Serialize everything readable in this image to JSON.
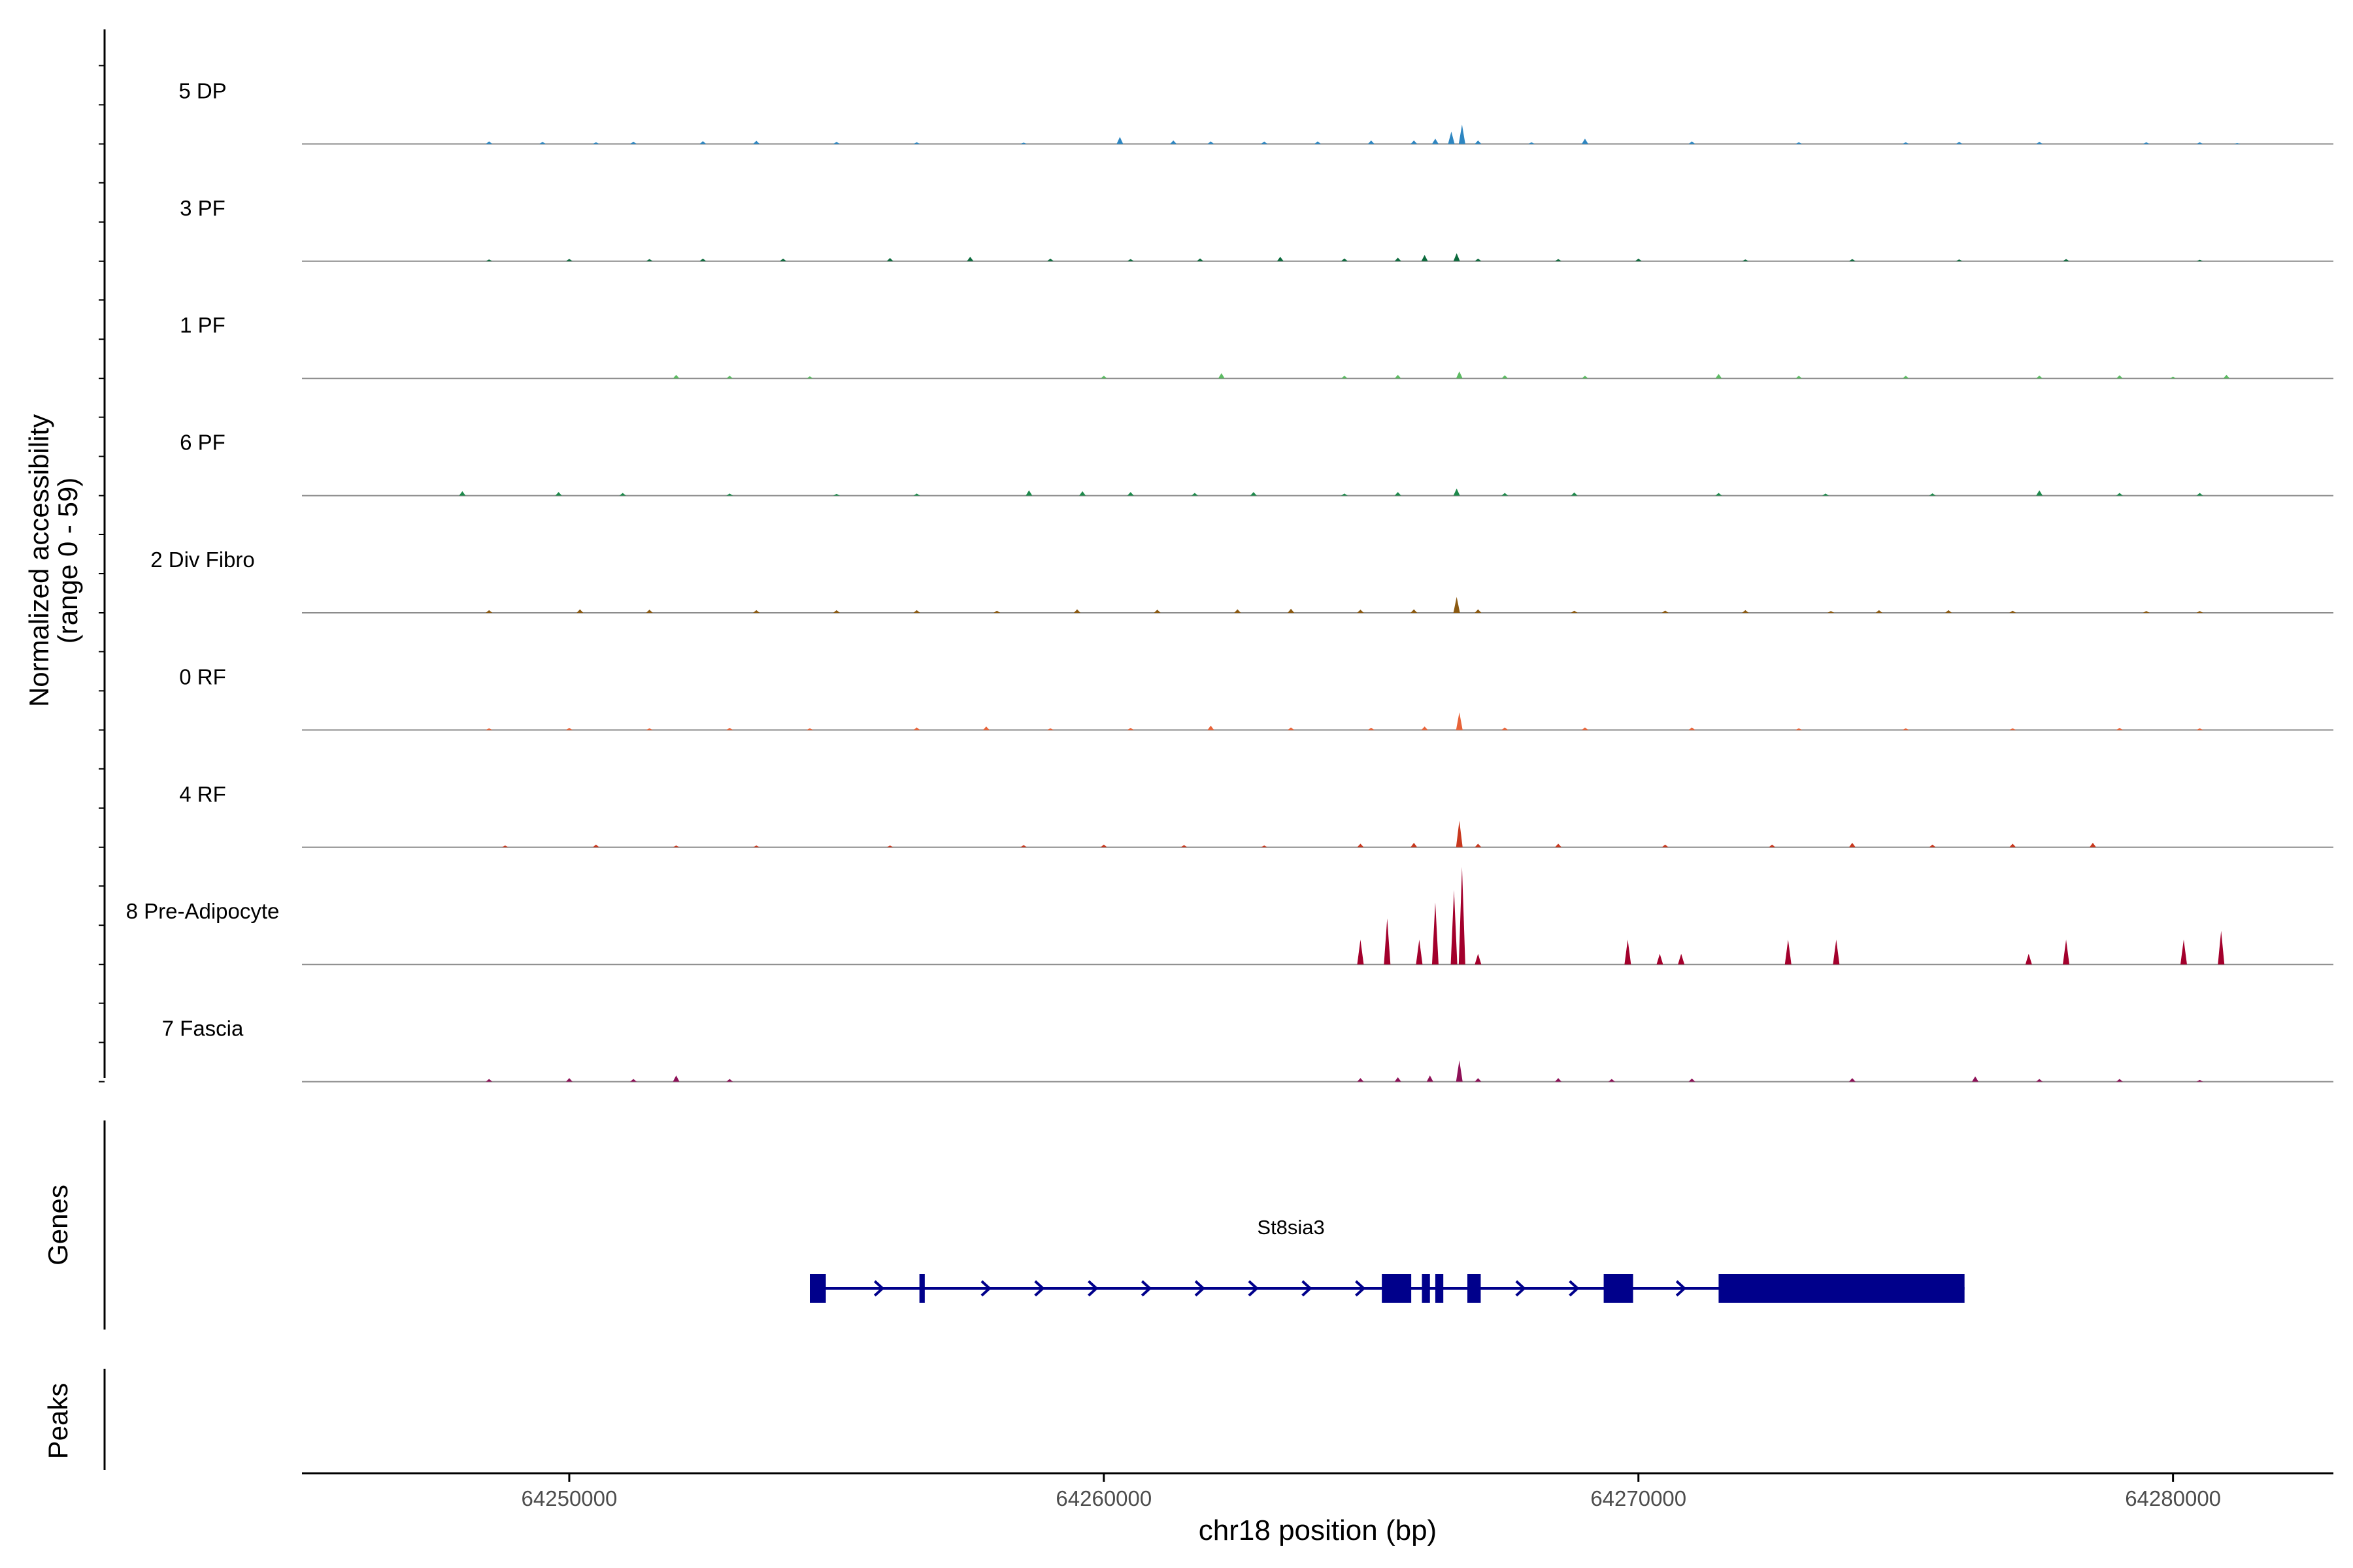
{
  "chart_data": {
    "type": "area",
    "title": "",
    "ylabel_line1": "Normalized accessibility",
    "ylabel_line2": "(range 0 - 59)",
    "xlabel": "chr18 position (bp)",
    "xlim": [
      64245000,
      64283000
    ],
    "ylim": [
      0,
      59
    ],
    "xticks": [
      64250000,
      64260000,
      64270000,
      64280000
    ],
    "xtick_labels": [
      "64250000",
      "64260000",
      "64270000",
      "64280000"
    ],
    "panel_labels": {
      "genes": "Genes",
      "peaks": "Peaks"
    },
    "gene": {
      "name": "St8sia3",
      "strand": "+",
      "start": 64254500,
      "end": 64276100,
      "exons": [
        [
          64254500,
          64254800
        ],
        [
          64256550,
          64256650
        ],
        [
          64265200,
          64265750
        ],
        [
          64265950,
          64266100
        ],
        [
          64266200,
          64266350
        ],
        [
          64266800,
          64267050
        ],
        [
          64269350,
          64269900
        ],
        [
          64271500,
          64276100
        ]
      ]
    },
    "series": [
      {
        "name": "5 DP",
        "color": "#2E86C1",
        "points": [
          [
            64247500,
            0
          ],
          [
            64248500,
            1.5
          ],
          [
            64249500,
            1.2
          ],
          [
            64250500,
            1
          ],
          [
            64251200,
            1.3
          ],
          [
            64252500,
            1.6
          ],
          [
            64253500,
            1.8
          ],
          [
            64255000,
            1.2
          ],
          [
            64256500,
            1
          ],
          [
            64258500,
            0.8
          ],
          [
            64260300,
            4
          ],
          [
            64261300,
            2
          ],
          [
            64262000,
            1.5
          ],
          [
            64263000,
            1.4
          ],
          [
            64264000,
            1.5
          ],
          [
            64265000,
            2
          ],
          [
            64265800,
            2
          ],
          [
            64266200,
            3
          ],
          [
            64266500,
            7
          ],
          [
            64266700,
            11
          ],
          [
            64267000,
            2
          ],
          [
            64268000,
            1
          ],
          [
            64269000,
            3
          ],
          [
            64271000,
            1.5
          ],
          [
            64273000,
            1
          ],
          [
            64275000,
            1
          ],
          [
            64276000,
            1.2
          ],
          [
            64277500,
            1.2
          ],
          [
            64279500,
            1
          ],
          [
            64280500,
            1
          ],
          [
            64281200,
            0.5
          ]
        ]
      },
      {
        "name": "3 PF",
        "color": "#0B6A3C",
        "points": [
          [
            64247500,
            0
          ],
          [
            64248500,
            1
          ],
          [
            64250000,
            1.3
          ],
          [
            64251500,
            1.2
          ],
          [
            64252500,
            1.5
          ],
          [
            64254000,
            1.5
          ],
          [
            64256000,
            1.8
          ],
          [
            64257500,
            2.5
          ],
          [
            64259000,
            1.5
          ],
          [
            64260500,
            1.2
          ],
          [
            64261800,
            1.6
          ],
          [
            64263300,
            2.5
          ],
          [
            64264500,
            1.6
          ],
          [
            64265500,
            2
          ],
          [
            64266000,
            3.5
          ],
          [
            64266600,
            4.5
          ],
          [
            64267000,
            1.5
          ],
          [
            64268500,
            1.2
          ],
          [
            64270000,
            1.5
          ],
          [
            64272000,
            1
          ],
          [
            64274000,
            1.2
          ],
          [
            64276000,
            1
          ],
          [
            64278000,
            1.2
          ],
          [
            64280500,
            0.8
          ]
        ]
      },
      {
        "name": "1 PF",
        "color": "#5DBB63",
        "points": [
          [
            64251700,
            0
          ],
          [
            64252000,
            2
          ],
          [
            64253000,
            1.5
          ],
          [
            64254500,
            1.2
          ],
          [
            64260000,
            1.5
          ],
          [
            64262200,
            3
          ],
          [
            64264500,
            1.5
          ],
          [
            64265500,
            2
          ],
          [
            64266650,
            4
          ],
          [
            64267500,
            1.8
          ],
          [
            64269000,
            1.5
          ],
          [
            64271500,
            2.5
          ],
          [
            64273000,
            1.5
          ],
          [
            64275000,
            1.5
          ],
          [
            64277500,
            1.6
          ],
          [
            64279000,
            1.8
          ],
          [
            64280000,
            1
          ],
          [
            64281000,
            2
          ]
        ]
      },
      {
        "name": "6 PF",
        "color": "#1F8A4C",
        "points": [
          [
            64247500,
            0
          ],
          [
            64248000,
            2.5
          ],
          [
            64249800,
            2
          ],
          [
            64251000,
            1.5
          ],
          [
            64253000,
            1.2
          ],
          [
            64255000,
            1
          ],
          [
            64256500,
            1.2
          ],
          [
            64258600,
            3
          ],
          [
            64259600,
            2.5
          ],
          [
            64260500,
            2
          ],
          [
            64261700,
            1.5
          ],
          [
            64262800,
            2
          ],
          [
            64264500,
            1.2
          ],
          [
            64265500,
            2
          ],
          [
            64266600,
            4
          ],
          [
            64267500,
            1.5
          ],
          [
            64268800,
            1.8
          ],
          [
            64271500,
            1.5
          ],
          [
            64273500,
            1.2
          ],
          [
            64275500,
            1.3
          ],
          [
            64277500,
            3
          ],
          [
            64279000,
            1.5
          ],
          [
            64280500,
            1.5
          ]
        ]
      },
      {
        "name": "2 Div Fibro",
        "color": "#8B5A12",
        "points": [
          [
            64247500,
            0
          ],
          [
            64248500,
            1.5
          ],
          [
            64250200,
            2
          ],
          [
            64251500,
            1.8
          ],
          [
            64253500,
            1.5
          ],
          [
            64255000,
            1.5
          ],
          [
            64256500,
            1.5
          ],
          [
            64258000,
            1.2
          ],
          [
            64259500,
            2
          ],
          [
            64261000,
            1.8
          ],
          [
            64262500,
            2
          ],
          [
            64263500,
            2.3
          ],
          [
            64264800,
            1.8
          ],
          [
            64265800,
            2
          ],
          [
            64266600,
            9
          ],
          [
            64267000,
            2
          ],
          [
            64268800,
            1.2
          ],
          [
            64270500,
            1.3
          ],
          [
            64272000,
            1.5
          ],
          [
            64273600,
            1
          ],
          [
            64274500,
            1.5
          ],
          [
            64275800,
            1.5
          ],
          [
            64277000,
            1.2
          ],
          [
            64279500,
            1
          ],
          [
            64280500,
            1
          ]
        ]
      },
      {
        "name": "0 RF",
        "color": "#E8643A",
        "points": [
          [
            64247500,
            0
          ],
          [
            64248500,
            1
          ],
          [
            64250000,
            1.2
          ],
          [
            64251500,
            1
          ],
          [
            64253000,
            1.2
          ],
          [
            64254500,
            1
          ],
          [
            64256500,
            1.5
          ],
          [
            64257800,
            2
          ],
          [
            64259000,
            1
          ],
          [
            64260500,
            1.2
          ],
          [
            64262000,
            2.5
          ],
          [
            64263500,
            1.5
          ],
          [
            64265000,
            1.3
          ],
          [
            64266000,
            2
          ],
          [
            64266650,
            10
          ],
          [
            64267500,
            1.5
          ],
          [
            64269000,
            1.5
          ],
          [
            64271000,
            1.5
          ],
          [
            64273000,
            1
          ],
          [
            64275000,
            1
          ],
          [
            64277000,
            1
          ],
          [
            64279000,
            1.2
          ],
          [
            64280500,
            1
          ]
        ]
      },
      {
        "name": "4 RF",
        "color": "#C8381E",
        "points": [
          [
            64247500,
            0
          ],
          [
            64248800,
            1
          ],
          [
            64250500,
            1.5
          ],
          [
            64252000,
            1
          ],
          [
            64253500,
            1
          ],
          [
            64256000,
            1
          ],
          [
            64258500,
            1.2
          ],
          [
            64260000,
            1.5
          ],
          [
            64261500,
            1.2
          ],
          [
            64263000,
            1
          ],
          [
            64264800,
            2
          ],
          [
            64265800,
            2.5
          ],
          [
            64266650,
            15
          ],
          [
            64267000,
            2
          ],
          [
            64268500,
            2
          ],
          [
            64270500,
            1.5
          ],
          [
            64272500,
            1.5
          ],
          [
            64274000,
            2.5
          ],
          [
            64275500,
            1.5
          ],
          [
            64277000,
            2
          ],
          [
            64278500,
            2.5
          ]
        ]
      },
      {
        "name": "8 Pre-Adipocyte",
        "color": "#A3002C",
        "points": [
          [
            64264700,
            0
          ],
          [
            64264800,
            14
          ],
          [
            64265300,
            26
          ],
          [
            64265900,
            14
          ],
          [
            64266200,
            35
          ],
          [
            64266550,
            42
          ],
          [
            64266700,
            55
          ],
          [
            64267000,
            6
          ],
          [
            64269800,
            14
          ],
          [
            64270400,
            6
          ],
          [
            64270800,
            6
          ],
          [
            64272800,
            14
          ],
          [
            64273700,
            14
          ],
          [
            64277300,
            6
          ],
          [
            64278000,
            14
          ],
          [
            64280200,
            14
          ],
          [
            64280900,
            19
          ]
        ]
      },
      {
        "name": "7 Fascia",
        "color": "#8E1158",
        "points": [
          [
            64247500,
            0
          ],
          [
            64248500,
            1.5
          ],
          [
            64250000,
            2
          ],
          [
            64251200,
            1.5
          ],
          [
            64252000,
            3.5
          ],
          [
            64253000,
            1.5
          ],
          [
            64264800,
            2
          ],
          [
            64265500,
            2.5
          ],
          [
            64266100,
            3.5
          ],
          [
            64266650,
            12
          ],
          [
            64267000,
            2
          ],
          [
            64268500,
            2
          ],
          [
            64269500,
            1.5
          ],
          [
            64271000,
            1.8
          ],
          [
            64274000,
            2
          ],
          [
            64276300,
            3
          ],
          [
            64277500,
            1.5
          ],
          [
            64279000,
            1.5
          ],
          [
            64280500,
            1
          ]
        ]
      }
    ]
  }
}
